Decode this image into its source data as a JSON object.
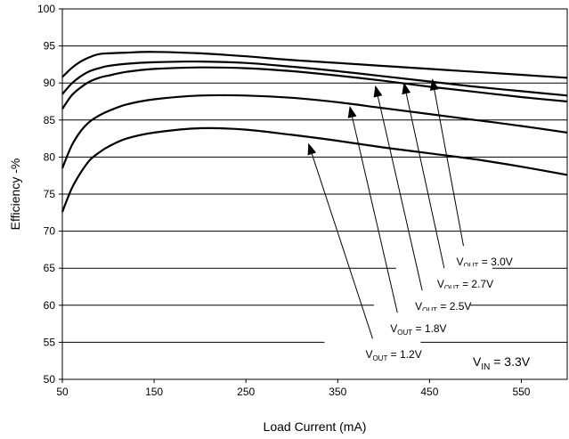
{
  "chart_data": {
    "type": "line",
    "title": "",
    "xlabel": "Load Current (mA)",
    "ylabel": "Efficiency -%",
    "xlim": [
      50,
      600
    ],
    "ylim": [
      50,
      100
    ],
    "xticks": [
      50,
      150,
      250,
      350,
      450,
      550
    ],
    "yticks": [
      50,
      55,
      60,
      65,
      70,
      75,
      80,
      85,
      90,
      95,
      100
    ],
    "grid": "horizontal",
    "series": [
      {
        "name": "VOUT = 3.0V",
        "x": [
          50,
          60,
          70,
          80,
          90,
          100,
          120,
          150,
          200,
          250,
          300,
          350,
          400,
          450,
          500,
          550,
          600
        ],
        "y": [
          90.8,
          92.0,
          92.9,
          93.5,
          93.9,
          94.0,
          94.1,
          94.2,
          94.0,
          93.6,
          93.1,
          92.7,
          92.3,
          91.9,
          91.5,
          91.1,
          90.7
        ]
      },
      {
        "name": "VOUT = 2.7V",
        "x": [
          50,
          60,
          70,
          80,
          90,
          100,
          120,
          150,
          200,
          250,
          300,
          350,
          400,
          450,
          500,
          550,
          600
        ],
        "y": [
          88.5,
          89.9,
          90.9,
          91.6,
          92.0,
          92.3,
          92.6,
          92.8,
          92.9,
          92.7,
          92.2,
          91.6,
          90.9,
          90.2,
          89.5,
          88.9,
          88.3
        ]
      },
      {
        "name": "VOUT = 2.5V",
        "x": [
          50,
          60,
          70,
          80,
          90,
          100,
          120,
          150,
          200,
          250,
          300,
          350,
          400,
          450,
          500,
          550,
          600
        ],
        "y": [
          86.5,
          88.3,
          89.4,
          90.2,
          90.7,
          91.0,
          91.5,
          91.9,
          92.1,
          92.0,
          91.6,
          91.0,
          90.3,
          89.5,
          88.8,
          88.1,
          87.5
        ]
      },
      {
        "name": "VOUT = 1.8V",
        "x": [
          50,
          60,
          70,
          80,
          90,
          100,
          120,
          150,
          200,
          250,
          300,
          350,
          400,
          450,
          500,
          550,
          600
        ],
        "y": [
          78.5,
          81.5,
          83.5,
          84.8,
          85.6,
          86.2,
          87.1,
          87.8,
          88.3,
          88.3,
          88.0,
          87.4,
          86.6,
          85.8,
          85.0,
          84.2,
          83.3
        ]
      },
      {
        "name": "VOUT = 1.2V",
        "x": [
          50,
          60,
          70,
          80,
          90,
          100,
          120,
          150,
          200,
          250,
          300,
          350,
          400,
          450,
          500,
          550,
          600
        ],
        "y": [
          72.6,
          75.7,
          77.9,
          79.6,
          80.6,
          81.4,
          82.5,
          83.3,
          83.9,
          83.7,
          83.0,
          82.2,
          81.3,
          80.5,
          79.7,
          78.7,
          77.6
        ]
      }
    ],
    "annotations": [
      {
        "prefix": "V",
        "sub": "OUT",
        "suffix": " = 3.0V",
        "anchor": [
          487,
          68
        ],
        "target": [
          453,
          90.6
        ]
      },
      {
        "prefix": "V",
        "sub": "OUT",
        "suffix": " = 2.7V",
        "anchor": [
          466,
          65
        ],
        "target": [
          422,
          90.1
        ]
      },
      {
        "prefix": "V",
        "sub": "OUT",
        "suffix": " = 2.5V",
        "anchor": [
          442,
          62
        ],
        "target": [
          391,
          89.7
        ]
      },
      {
        "prefix": "V",
        "sub": "OUT",
        "suffix": " = 1.8V",
        "anchor": [
          415,
          59
        ],
        "target": [
          363,
          86.9
        ]
      },
      {
        "prefix": "V",
        "sub": "OUT",
        "suffix": " = 1.2V",
        "anchor": [
          388,
          55.5
        ],
        "target": [
          318,
          81.9
        ]
      }
    ],
    "condition": {
      "prefix": "V",
      "sub": "IN",
      "suffix": " = 3.3V"
    }
  }
}
